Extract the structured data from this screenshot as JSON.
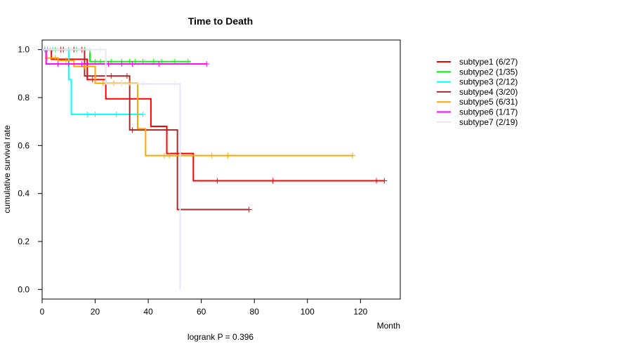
{
  "chart_data": {
    "type": "line",
    "title": "Time to Death",
    "xlabel": "Month",
    "ylabel": "cumulative survival rate",
    "annotation": "logrank P = 0.396",
    "xlim": [
      0,
      135
    ],
    "ylim": [
      -0.04,
      1.04
    ],
    "x_ticks": [
      0,
      20,
      40,
      60,
      80,
      100,
      120
    ],
    "y_ticks": [
      0.0,
      0.2,
      0.4,
      0.6,
      0.8,
      1.0
    ],
    "y_tick_labels": [
      "0.0",
      "0.2",
      "0.4",
      "0.6",
      "0.8",
      "1.0"
    ],
    "grid": false,
    "legend_position": "right",
    "series": [
      {
        "name": "subtype1 (6/27)",
        "color": "#ff0000",
        "steps": [
          [
            0,
            1.0
          ],
          [
            3.5,
            0.96
          ],
          [
            17,
            0.875
          ],
          [
            24,
            0.795
          ],
          [
            41,
            0.68
          ],
          [
            47,
            0.567
          ],
          [
            57,
            0.453
          ],
          [
            129,
            0.453
          ]
        ],
        "censor": [
          [
            1,
            1.0
          ],
          [
            7,
            1.0
          ],
          [
            12,
            1.0
          ],
          [
            15,
            1.0
          ],
          [
            19,
            0.875
          ],
          [
            20,
            0.875
          ],
          [
            66,
            0.453
          ],
          [
            87,
            0.453
          ],
          [
            126,
            0.453
          ],
          [
            129,
            0.453
          ]
        ]
      },
      {
        "name": "subtype2 (1/35)",
        "color": "#00ff00",
        "steps": [
          [
            0,
            1.0
          ],
          [
            18,
            0.95
          ],
          [
            56,
            0.95
          ]
        ],
        "censor": [
          [
            2,
            1.0
          ],
          [
            5,
            1.0
          ],
          [
            8,
            1.0
          ],
          [
            10,
            1.0
          ],
          [
            13,
            1.0
          ],
          [
            16,
            1.0
          ],
          [
            20,
            0.95
          ],
          [
            22,
            0.95
          ],
          [
            26,
            0.95
          ],
          [
            30,
            0.95
          ],
          [
            33,
            0.95
          ],
          [
            35,
            0.95
          ],
          [
            38,
            0.95
          ],
          [
            42,
            0.95
          ],
          [
            45,
            0.95
          ],
          [
            50,
            0.95
          ],
          [
            55,
            0.95
          ]
        ]
      },
      {
        "name": "subtype3 (2/12)",
        "color": "#00ffff",
        "steps": [
          [
            0,
            1.0
          ],
          [
            10,
            0.875
          ],
          [
            11,
            0.73
          ],
          [
            38,
            0.73
          ]
        ],
        "censor": [
          [
            1,
            1.0
          ],
          [
            4,
            1.0
          ],
          [
            17,
            0.73
          ],
          [
            20,
            0.73
          ],
          [
            28,
            0.73
          ],
          [
            38,
            0.73
          ]
        ]
      },
      {
        "name": "subtype4 (3/20)",
        "color": "#a52a2a",
        "steps": [
          [
            0,
            1.0
          ],
          [
            16,
            0.89
          ],
          [
            33,
            0.665
          ],
          [
            51,
            0.333
          ],
          [
            78,
            0.333
          ]
        ],
        "censor": [
          [
            3,
            1.0
          ],
          [
            8,
            1.0
          ],
          [
            12,
            1.0
          ],
          [
            26,
            0.89
          ],
          [
            32,
            0.89
          ],
          [
            34,
            0.665
          ],
          [
            78,
            0.333
          ]
        ]
      },
      {
        "name": "subtype5 (6/31)",
        "color": "#ffa500",
        "steps": [
          [
            0,
            1.0
          ],
          [
            1.5,
            0.965
          ],
          [
            6,
            0.955
          ],
          [
            12,
            0.93
          ],
          [
            20,
            0.86
          ],
          [
            36,
            0.67
          ],
          [
            39,
            0.558
          ],
          [
            117,
            0.558
          ]
        ],
        "censor": [
          [
            2,
            0.965
          ],
          [
            5,
            0.965
          ],
          [
            9,
            0.955
          ],
          [
            16,
            0.93
          ],
          [
            23,
            0.86
          ],
          [
            27,
            0.86
          ],
          [
            30,
            0.86
          ],
          [
            33,
            0.86
          ],
          [
            46,
            0.558
          ],
          [
            48,
            0.558
          ],
          [
            64,
            0.558
          ],
          [
            70,
            0.558
          ],
          [
            117,
            0.558
          ]
        ]
      },
      {
        "name": "subtype6 (1/17)",
        "color": "#ff00ff",
        "steps": [
          [
            0,
            1.0
          ],
          [
            1.5,
            0.94
          ],
          [
            62,
            0.94
          ]
        ],
        "censor": [
          [
            6,
            0.94
          ],
          [
            10,
            0.94
          ],
          [
            15,
            0.94
          ],
          [
            25,
            0.94
          ],
          [
            30,
            0.94
          ],
          [
            34,
            0.94
          ],
          [
            44,
            0.94
          ],
          [
            62,
            0.94
          ]
        ]
      },
      {
        "name": "subtype7 (2/19)",
        "color": "#e6e6fa",
        "steps": [
          [
            0,
            1.0
          ],
          [
            24,
            0.857
          ],
          [
            52,
            0.0
          ]
        ],
        "censor": [
          [
            3,
            1.0
          ],
          [
            6,
            1.0
          ],
          [
            9,
            1.0
          ],
          [
            11,
            1.0
          ],
          [
            14,
            1.0
          ],
          [
            18,
            1.0
          ],
          [
            22,
            1.0
          ],
          [
            30,
            0.857
          ],
          [
            38,
            0.857
          ],
          [
            50,
            0.857
          ]
        ]
      }
    ]
  }
}
